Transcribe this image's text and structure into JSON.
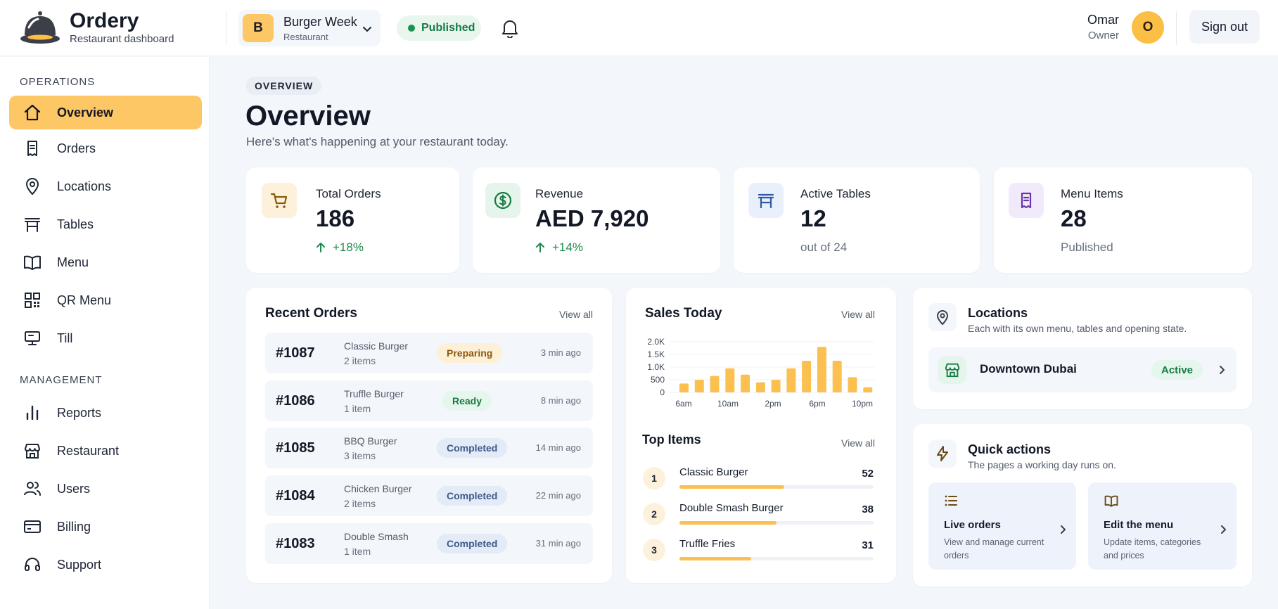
{
  "brand": {
    "name": "Ordery",
    "subtitle": "Restaurant dashboard"
  },
  "org": {
    "initial": "B",
    "name": "Burger Week",
    "type": "Restaurant"
  },
  "status": {
    "label": "Published"
  },
  "user": {
    "name": "Omar",
    "role": "Owner",
    "initial": "O"
  },
  "signout_label": "Sign out",
  "sidebar": {
    "section_operations": "OPERATIONS",
    "section_management": "MANAGEMENT",
    "items": [
      {
        "label": "Overview",
        "icon": "home-icon"
      },
      {
        "label": "Orders",
        "icon": "receipt-icon"
      },
      {
        "label": "Locations",
        "icon": "map-pin-icon"
      },
      {
        "label": "Tables",
        "icon": "table-icon"
      },
      {
        "label": "Menu",
        "icon": "book-open-icon"
      },
      {
        "label": "QR Menu",
        "icon": "qr-code-icon"
      },
      {
        "label": "Till",
        "icon": "monitor-icon"
      },
      {
        "label": "Reports",
        "icon": "bar-chart-icon"
      },
      {
        "label": "Restaurant",
        "icon": "store-icon"
      },
      {
        "label": "Users",
        "icon": "users-icon"
      },
      {
        "label": "Billing",
        "icon": "credit-card-icon"
      },
      {
        "label": "Support",
        "icon": "headset-icon"
      }
    ]
  },
  "page": {
    "breadcrumb": "OVERVIEW",
    "title": "Overview",
    "subtitle": "Here's what's happening at your restaurant today."
  },
  "stats": [
    {
      "label": "Total Orders",
      "value": "186",
      "foot": "+18%",
      "trend": "up",
      "icon": "cart-icon"
    },
    {
      "label": "Revenue",
      "value": "AED 7,920",
      "foot": "+14%",
      "trend": "up",
      "icon": "dollar-icon"
    },
    {
      "label": "Active Tables",
      "value": "12",
      "foot": "out of 24",
      "trend": "none",
      "icon": "table-icon"
    },
    {
      "label": "Menu Items",
      "value": "28",
      "foot": "Published",
      "trend": "none",
      "icon": "receipt-icon"
    }
  ],
  "recent_orders": {
    "title": "Recent Orders",
    "view_all": "View all",
    "rows": [
      {
        "id": "#1087",
        "item": "Classic Burger",
        "qty": "2 items",
        "status": "Preparing",
        "time": "3 min ago"
      },
      {
        "id": "#1086",
        "item": "Truffle Burger",
        "qty": "1 item",
        "status": "Ready",
        "time": "8 min ago"
      },
      {
        "id": "#1085",
        "item": "BBQ Burger",
        "qty": "3 items",
        "status": "Completed",
        "time": "14 min ago"
      },
      {
        "id": "#1084",
        "item": "Chicken Burger",
        "qty": "2 items",
        "status": "Completed",
        "time": "22 min ago"
      },
      {
        "id": "#1083",
        "item": "Double Smash",
        "qty": "1 item",
        "status": "Completed",
        "time": "31 min ago"
      }
    ]
  },
  "colors": {
    "accent": "#fdc765",
    "bar": "#fbc04f",
    "preparing_bg": "#fdf0d6",
    "preparing_fg": "#8a5a0b",
    "ready_bg": "#e5f6ec",
    "ready_fg": "#177a45",
    "completed_bg": "#e3ebf7",
    "completed_fg": "#3c5a8a"
  },
  "sales": {
    "title": "Sales Today",
    "view_all": "View all",
    "chart_data": {
      "type": "bar",
      "title": "Sales Today",
      "y_ticks": [
        "2.0K",
        "1.5K",
        "1.0K",
        "500",
        "0"
      ],
      "ylim": [
        0,
        2000
      ],
      "x_ticks": [
        "6am",
        "10am",
        "2pm",
        "6pm",
        "10pm"
      ],
      "values": [
        350,
        500,
        650,
        950,
        700,
        400,
        500,
        950,
        1250,
        1800,
        1250,
        600,
        200
      ],
      "grid": true
    }
  },
  "top_items": {
    "title": "Top Items",
    "view_all": "View all",
    "items": [
      {
        "rank": "1",
        "name": "Classic Burger",
        "count": "52",
        "fraction": 0.54
      },
      {
        "rank": "2",
        "name": "Double Smash Burger",
        "count": "38",
        "fraction": 0.5
      },
      {
        "rank": "3",
        "name": "Truffle Fries",
        "count": "31",
        "fraction": 0.37
      }
    ]
  },
  "locations": {
    "title": "Locations",
    "subtitle": "Each with its own menu, tables and opening state.",
    "items": [
      {
        "name": "Downtown Dubai",
        "status": "Active"
      }
    ]
  },
  "quick_actions": {
    "title": "Quick actions",
    "subtitle": "The pages a working day runs on.",
    "items": [
      {
        "title": "Live orders",
        "desc": "View and manage current orders",
        "icon": "list-icon"
      },
      {
        "title": "Edit the menu",
        "desc": "Update items, categories and prices",
        "icon": "book-open-icon"
      }
    ]
  }
}
